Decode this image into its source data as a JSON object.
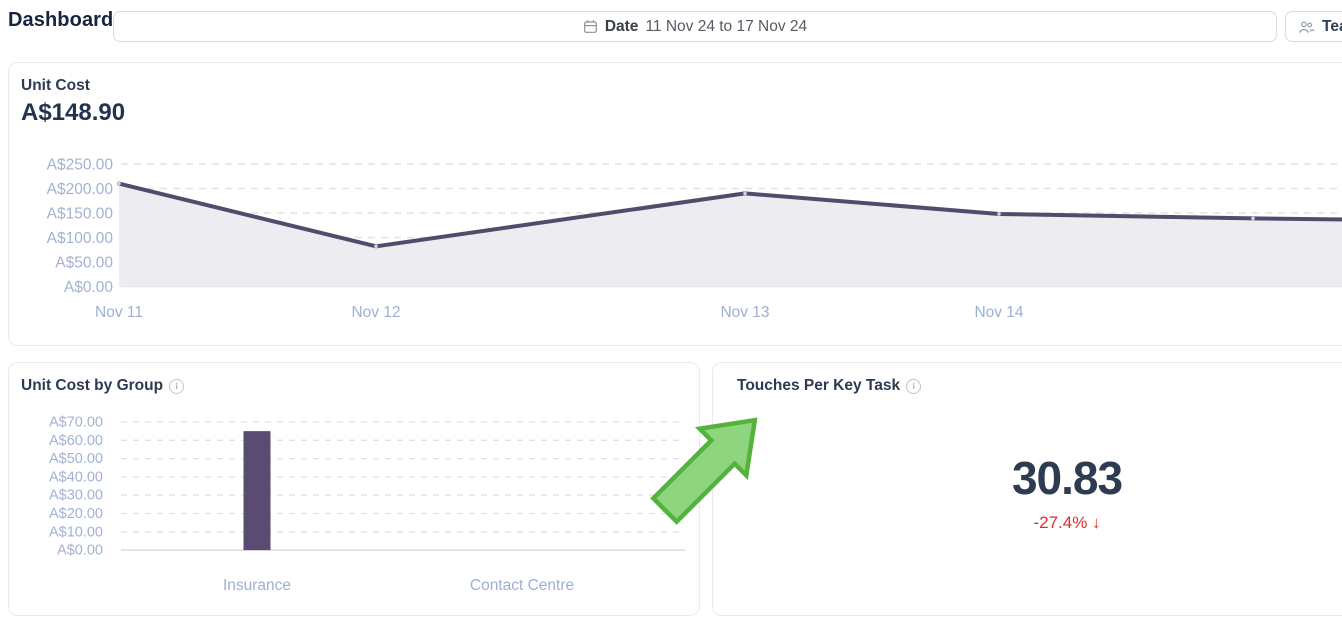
{
  "topbar": {
    "title": "Dashboard",
    "date_picker": {
      "icon": "calendar-icon",
      "label": "Date",
      "value": "11 Nov 24 to 17 Nov 24"
    },
    "team_button": {
      "icon": "team-icon",
      "label": "Tea"
    }
  },
  "cards": {
    "unit_cost": {
      "title": "Unit Cost",
      "value": "A$148.90"
    },
    "unit_cost_by_group": {
      "title": "Unit Cost by Group",
      "info_icon": "info-icon"
    },
    "touches_per_key_task": {
      "title": "Touches Per Key Task",
      "info_icon": "info-icon",
      "value": "30.83",
      "delta": "-27.4% ↓",
      "delta_color": "#e12b2b"
    }
  },
  "chart_data": [
    {
      "type": "area",
      "title": "Unit Cost",
      "headline": "A$148.90",
      "x": [
        "Nov 11",
        "Nov 12",
        "Nov 13",
        "Nov 14"
      ],
      "values": [
        210,
        82,
        190,
        148
      ],
      "continuation_offscreen": [
        139,
        133
      ],
      "yticks": [
        "A$250.00",
        "A$200.00",
        "A$150.00",
        "A$100.00",
        "A$50.00",
        "A$0.00"
      ],
      "ylim": [
        0,
        250
      ],
      "grid": "dashed-horizontal",
      "legend": "none",
      "line_color": "#544a6b",
      "fill_color": "#ededf1",
      "axis_label_color": "#a3b2d2"
    },
    {
      "type": "bar",
      "title": "Unit Cost by Group",
      "categories": [
        "Insurance",
        "Contact Centre"
      ],
      "values": [
        65,
        0
      ],
      "yticks": [
        "A$70.00",
        "A$60.00",
        "A$50.00",
        "A$40.00",
        "A$30.00",
        "A$20.00",
        "A$10.00",
        "A$0.00"
      ],
      "ylim": [
        0,
        70
      ],
      "grid": "dashed-horizontal",
      "legend": "none",
      "bar_color": "#594b72",
      "axis_label_color": "#a3b2d2"
    },
    {
      "type": "kpi",
      "title": "Touches Per Key Task",
      "value": "30.83",
      "delta": "-27.4% ↓"
    }
  ],
  "annotation": {
    "shape": "block-arrow",
    "direction": "up-right",
    "fill": "#8fd57f",
    "stroke": "#55b23c"
  }
}
